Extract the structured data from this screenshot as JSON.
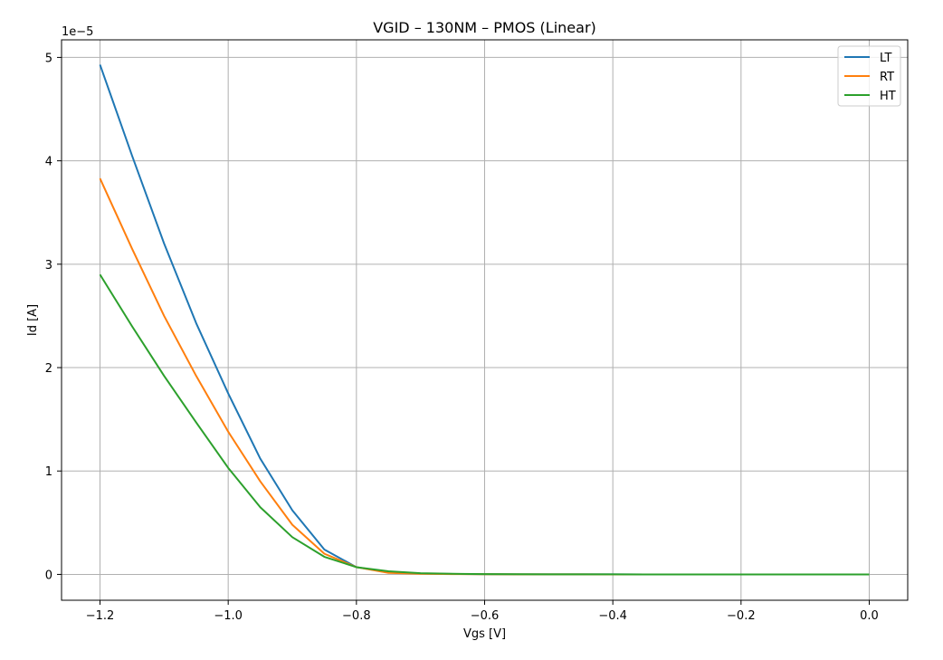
{
  "chart_data": {
    "type": "line",
    "title": "VGID – 130NM – PMOS (Linear)",
    "xlabel": "Vgs [V]",
    "ylabel": "Id [A]",
    "y_offset_text": "1e−5",
    "xlim": [
      -1.26,
      0.06
    ],
    "ylim": [
      -0.25,
      5.17
    ],
    "y_scale_exponent": -5,
    "xticks": [
      -1.2,
      -1.0,
      -0.8,
      -0.6,
      -0.4,
      -0.2,
      0.0
    ],
    "xtick_labels": [
      "−1.2",
      "−1.0",
      "−0.8",
      "−0.6",
      "−0.4",
      "−0.2",
      "0.0"
    ],
    "yticks": [
      0,
      1,
      2,
      3,
      4,
      5
    ],
    "ytick_labels": [
      "0",
      "1",
      "2",
      "3",
      "4",
      "5"
    ],
    "grid": true,
    "legend_position": "top-right",
    "x": [
      -1.2,
      -1.15,
      -1.1,
      -1.05,
      -1.0,
      -0.95,
      -0.9,
      -0.85,
      -0.8,
      -0.75,
      -0.7,
      -0.65,
      -0.6,
      -0.55,
      -0.5,
      -0.45,
      -0.4,
      -0.35,
      -0.3,
      -0.25,
      -0.2,
      -0.15,
      -0.1,
      -0.05,
      0.0
    ],
    "series": [
      {
        "name": "LT",
        "color": "#1f77b4",
        "values": [
          4.93,
          4.05,
          3.2,
          2.43,
          1.75,
          1.12,
          0.62,
          0.24,
          0.07,
          0.02,
          0.008,
          0.004,
          0.002,
          0.001,
          0.0005,
          0.0003,
          0.0002,
          0.0001,
          0.0001,
          0.0,
          0.0,
          0.0,
          0.0,
          0.0,
          0.0
        ]
      },
      {
        "name": "RT",
        "color": "#ff7f0e",
        "values": [
          3.83,
          3.15,
          2.5,
          1.92,
          1.38,
          0.9,
          0.48,
          0.2,
          0.07,
          0.015,
          0.006,
          0.003,
          0.0015,
          0.0008,
          0.0004,
          0.0002,
          0.0001,
          0.0001,
          0.0,
          0.0,
          0.0,
          0.0,
          0.0,
          0.0,
          0.0
        ]
      },
      {
        "name": "HT",
        "color": "#2ca02c",
        "values": [
          2.9,
          2.4,
          1.92,
          1.47,
          1.03,
          0.65,
          0.36,
          0.17,
          0.07,
          0.03,
          0.012,
          0.006,
          0.003,
          0.0015,
          0.0008,
          0.0004,
          0.0002,
          0.0001,
          0.0001,
          0.0,
          0.0,
          0.0,
          0.0,
          0.0,
          0.0
        ]
      }
    ]
  },
  "colors": {
    "grid": "#b0b0b0",
    "axes": "#000000",
    "legend_border": "#cccccc"
  }
}
